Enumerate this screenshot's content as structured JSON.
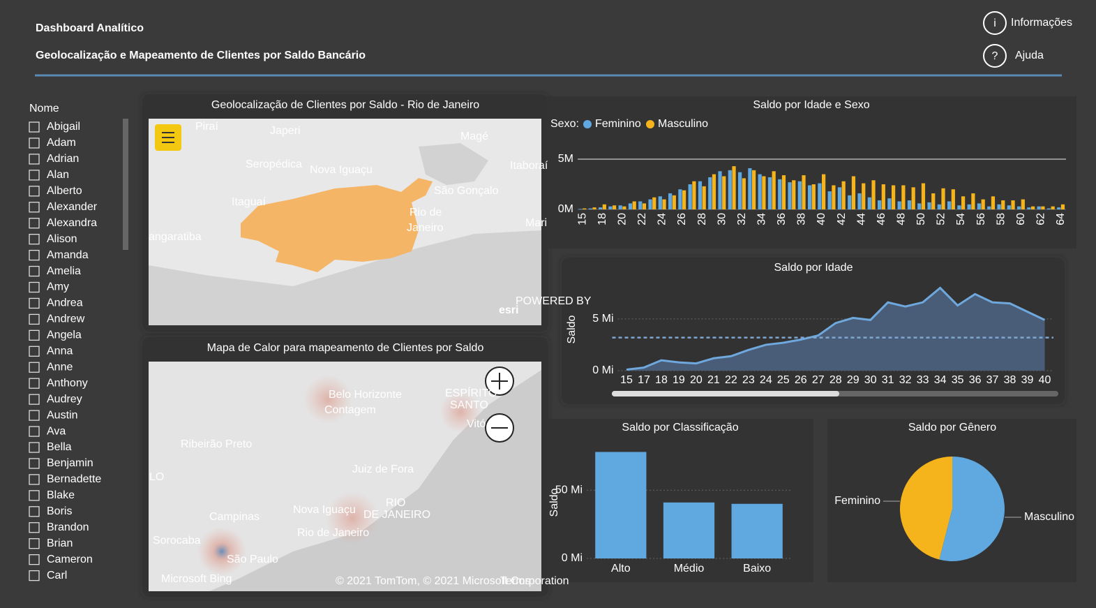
{
  "header": {
    "title": "Dashboard Analítico",
    "subtitle": "Geolocalização e Mapeamento de Clientes por Saldo Bancário",
    "buttons": [
      "Informações",
      "Ajuda"
    ]
  },
  "slicer": {
    "title": "Nome",
    "items": [
      "Abigail",
      "Adam",
      "Adrian",
      "Alan",
      "Alberto",
      "Alexander",
      "Alexandra",
      "Alison",
      "Amanda",
      "Amelia",
      "Amy",
      "Andrea",
      "Andrew",
      "Angela",
      "Anna",
      "Anne",
      "Anthony",
      "Audrey",
      "Austin",
      "Ava",
      "Bella",
      "Benjamin",
      "Bernadette",
      "Blake",
      "Boris",
      "Brandon",
      "Brian",
      "Cameron",
      "Carl"
    ]
  },
  "maps": [
    {
      "title": "Geolocalização de Clientes por Saldo - Rio de Janeiro",
      "labels": [
        "Piraí",
        "Japeri",
        "Magé",
        "Seropédica",
        "Nova Iguaçu",
        "Itaboraí",
        "São Gonçalo",
        "Itaguaí",
        "Rio de",
        "Janeiro",
        "Mari",
        "angaratiba",
        "POWERED BY",
        "esri"
      ]
    },
    {
      "title": "Mapa de Calor para mapeamento de Clientes por Saldo",
      "labels": [
        "Belo Horizonte",
        "Contagem",
        "ESPÍRITO",
        "SANTO",
        "Vitó",
        "Ribeirão Preto",
        "Juiz de Fora",
        "LO",
        "RIO",
        "DE JANEIRO",
        "Nova Iguaçu",
        "Campinas",
        "Rio de Janeiro",
        "Sorocaba",
        "São Paulo",
        "Microsoft Bing",
        "© 2021 TomTom, © 2021 Microsoft Corporation",
        "Terms"
      ]
    }
  ],
  "chart_data": [
    {
      "type": "bar",
      "title": "Saldo por Idade e Sexo",
      "legend_title": "Sexo:",
      "categories": [
        15,
        null,
        18,
        null,
        20,
        null,
        22,
        null,
        24,
        null,
        26,
        null,
        28,
        null,
        30,
        null,
        32,
        null,
        34,
        null,
        36,
        null,
        38,
        null,
        40,
        null,
        42,
        null,
        44,
        null,
        46,
        null,
        48,
        null,
        50,
        null,
        52,
        null,
        54,
        null,
        56,
        null,
        58,
        null,
        60,
        null,
        62,
        null,
        64
      ],
      "series": [
        {
          "name": "Feminino",
          "color": "#5fa8e0",
          "values": [
            0.05,
            0.1,
            0.2,
            0.3,
            0.4,
            0.6,
            0.8,
            1.0,
            1.3,
            1.6,
            2.0,
            2.5,
            2.8,
            3.2,
            3.8,
            3.9,
            3.7,
            4.1,
            3.5,
            3.2,
            3.0,
            2.7,
            2.8,
            2.4,
            2.6,
            1.8,
            2.2,
            1.4,
            1.6,
            1.2,
            0.9,
            1.1,
            0.8,
            0.9,
            0.6,
            0.7,
            0.5,
            0.8,
            0.4,
            0.5,
            0.6,
            0.3,
            0.5,
            0.4,
            0.3,
            0.2,
            0.3,
            0.1,
            0.2
          ]
        },
        {
          "name": "Masculino",
          "color": "#f5b31c",
          "values": [
            0.1,
            0.2,
            0.5,
            0.4,
            0.3,
            0.8,
            0.6,
            1.2,
            1.0,
            1.4,
            1.9,
            2.8,
            2.3,
            3.5,
            3.3,
            4.3,
            3.1,
            3.9,
            3.3,
            3.8,
            3.4,
            2.9,
            3.4,
            2.5,
            3.5,
            2.4,
            2.8,
            3.3,
            2.6,
            2.9,
            2.5,
            2.4,
            2.4,
            2.2,
            2.6,
            1.6,
            2.1,
            2.0,
            1.3,
            1.6,
            1.0,
            1.3,
            0.9,
            0.9,
            1.0,
            0.3,
            0.3,
            0.3,
            0.5
          ]
        }
      ],
      "ylim": [
        0,
        5
      ],
      "yticks": [
        {
          "value": 0,
          "label": "0M"
        },
        {
          "value": 5,
          "label": "5M"
        }
      ],
      "grid": true
    },
    {
      "type": "area",
      "title": "Saldo por Idade",
      "ylabel": "Saldo",
      "color": "#6fa8dc",
      "categories": [
        15,
        17,
        18,
        19,
        20,
        21,
        22,
        23,
        24,
        25,
        26,
        27,
        28,
        29,
        30,
        31,
        32,
        33,
        34,
        35,
        36,
        37,
        38,
        39,
        40
      ],
      "values": [
        0.1,
        0.3,
        1.0,
        0.8,
        0.7,
        1.2,
        1.4,
        2.0,
        2.5,
        2.7,
        3.0,
        3.4,
        4.6,
        5.1,
        4.9,
        6.6,
        6.2,
        6.6,
        8.0,
        6.3,
        7.4,
        6.6,
        6.5,
        5.7,
        4.9
      ],
      "average": 3.2,
      "ylim": [
        0,
        8.5
      ],
      "yticks": [
        {
          "value": 0,
          "label": "0 Mi"
        },
        {
          "value": 5,
          "label": "5 Mi"
        }
      ],
      "grid": true
    },
    {
      "type": "bar",
      "title": "Saldo por Classificação",
      "ylabel": "Saldo",
      "color": "#5fa8e0",
      "categories": [
        "Alto",
        "Médio",
        "Baixo"
      ],
      "values": [
        78,
        41,
        40
      ],
      "ylim": [
        0,
        90
      ],
      "yticks": [
        {
          "value": 0,
          "label": "0 Mi"
        },
        {
          "value": 50,
          "label": "50 Mi"
        }
      ],
      "grid": true
    },
    {
      "type": "pie",
      "title": "Saldo por Gênero",
      "categories": [
        "Feminino",
        "Masculino"
      ],
      "values": [
        46,
        54
      ],
      "colors": [
        "#f5b31c",
        "#5fa8e0"
      ]
    }
  ]
}
